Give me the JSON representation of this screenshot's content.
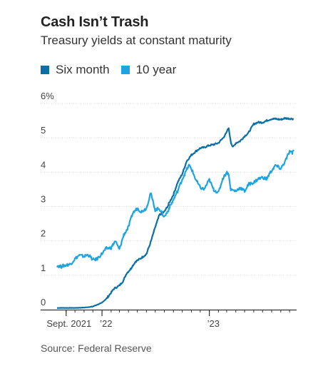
{
  "header": {
    "title": "Cash Isn’t Trash",
    "subtitle": "Treasury yields at constant maturity"
  },
  "source": "Source: Federal Reserve",
  "colors": {
    "six_month": "#0c6fa6",
    "ten_year": "#1ea4e0",
    "grid": "#d9d9d9",
    "axis": "#333333"
  },
  "chart_data": {
    "type": "line",
    "title": "Cash Isn’t Trash",
    "subtitle": "Treasury yields at constant maturity",
    "ylim": [
      0,
      6
    ],
    "y_ticks": [
      {
        "value": 0,
        "label": "0"
      },
      {
        "value": 1,
        "label": "1"
      },
      {
        "value": 2,
        "label": "2"
      },
      {
        "value": 3,
        "label": "3"
      },
      {
        "value": 4,
        "label": "4"
      },
      {
        "value": 5,
        "label": "5"
      },
      {
        "value": 6,
        "label": "6%"
      }
    ],
    "x_range": [
      "2021-08-01",
      "2023-10-20"
    ],
    "x_ticks": [
      {
        "date": "2021-09-01",
        "label": "Sept. 2021"
      },
      {
        "date": "2022-01-01",
        "label": "’22"
      },
      {
        "date": "2023-01-01",
        "label": "’23"
      }
    ],
    "grid": true,
    "legend": "top-left",
    "series": [
      {
        "name": "Six month",
        "color": "#0c6fa6",
        "points": [
          [
            "2021-08-01",
            0.05
          ],
          [
            "2021-09-01",
            0.05
          ],
          [
            "2021-10-01",
            0.05
          ],
          [
            "2021-11-01",
            0.06
          ],
          [
            "2021-12-01",
            0.09
          ],
          [
            "2022-01-01",
            0.2
          ],
          [
            "2022-01-20",
            0.35
          ],
          [
            "2022-02-10",
            0.6
          ],
          [
            "2022-03-01",
            0.7
          ],
          [
            "2022-03-15",
            0.85
          ],
          [
            "2022-03-25",
            1.05
          ],
          [
            "2022-04-10",
            1.2
          ],
          [
            "2022-04-25",
            1.4
          ],
          [
            "2022-05-15",
            1.5
          ],
          [
            "2022-06-01",
            1.62
          ],
          [
            "2022-06-15",
            1.95
          ],
          [
            "2022-07-01",
            2.4
          ],
          [
            "2022-07-15",
            2.75
          ],
          [
            "2022-08-01",
            2.85
          ],
          [
            "2022-08-15",
            3.05
          ],
          [
            "2022-09-01",
            3.35
          ],
          [
            "2022-09-15",
            3.7
          ],
          [
            "2022-10-01",
            3.95
          ],
          [
            "2022-10-15",
            4.3
          ],
          [
            "2022-11-01",
            4.5
          ],
          [
            "2022-11-15",
            4.6
          ],
          [
            "2022-12-01",
            4.7
          ],
          [
            "2022-12-15",
            4.72
          ],
          [
            "2023-01-01",
            4.78
          ],
          [
            "2023-01-15",
            4.8
          ],
          [
            "2023-02-01",
            4.85
          ],
          [
            "2023-02-15",
            4.98
          ],
          [
            "2023-03-01",
            5.15
          ],
          [
            "2023-03-08",
            5.3
          ],
          [
            "2023-03-15",
            4.9
          ],
          [
            "2023-03-22",
            4.72
          ],
          [
            "2023-04-01",
            4.85
          ],
          [
            "2023-04-15",
            4.9
          ],
          [
            "2023-05-01",
            5.05
          ],
          [
            "2023-05-15",
            5.15
          ],
          [
            "2023-06-01",
            5.4
          ],
          [
            "2023-06-15",
            5.45
          ],
          [
            "2023-07-01",
            5.45
          ],
          [
            "2023-07-15",
            5.5
          ],
          [
            "2023-08-01",
            5.55
          ],
          [
            "2023-08-15",
            5.55
          ],
          [
            "2023-09-01",
            5.53
          ],
          [
            "2023-09-15",
            5.57
          ],
          [
            "2023-10-01",
            5.56
          ],
          [
            "2023-10-15",
            5.55
          ]
        ]
      },
      {
        "name": "10 year",
        "color": "#1ea4e0",
        "points": [
          [
            "2021-08-01",
            1.28
          ],
          [
            "2021-08-15",
            1.25
          ],
          [
            "2021-09-01",
            1.3
          ],
          [
            "2021-09-15",
            1.32
          ],
          [
            "2021-10-01",
            1.48
          ],
          [
            "2021-10-15",
            1.58
          ],
          [
            "2021-11-01",
            1.55
          ],
          [
            "2021-11-15",
            1.6
          ],
          [
            "2021-12-01",
            1.45
          ],
          [
            "2021-12-15",
            1.47
          ],
          [
            "2022-01-01",
            1.63
          ],
          [
            "2022-01-15",
            1.78
          ],
          [
            "2022-02-01",
            1.8
          ],
          [
            "2022-02-15",
            2.0
          ],
          [
            "2022-03-01",
            1.75
          ],
          [
            "2022-03-15",
            2.15
          ],
          [
            "2022-04-01",
            2.4
          ],
          [
            "2022-04-15",
            2.8
          ],
          [
            "2022-05-01",
            2.95
          ],
          [
            "2022-05-15",
            2.85
          ],
          [
            "2022-06-01",
            2.95
          ],
          [
            "2022-06-15",
            3.4
          ],
          [
            "2022-07-01",
            2.9
          ],
          [
            "2022-07-15",
            2.95
          ],
          [
            "2022-08-01",
            2.7
          ],
          [
            "2022-08-15",
            2.9
          ],
          [
            "2022-09-01",
            3.2
          ],
          [
            "2022-09-15",
            3.45
          ],
          [
            "2022-10-01",
            3.8
          ],
          [
            "2022-10-15",
            4.05
          ],
          [
            "2022-10-24",
            4.2
          ],
          [
            "2022-11-01",
            4.1
          ],
          [
            "2022-11-15",
            3.8
          ],
          [
            "2022-12-01",
            3.55
          ],
          [
            "2022-12-15",
            3.5
          ],
          [
            "2023-01-01",
            3.78
          ],
          [
            "2023-01-15",
            3.5
          ],
          [
            "2023-02-01",
            3.4
          ],
          [
            "2023-02-15",
            3.8
          ],
          [
            "2023-03-01",
            4.0
          ],
          [
            "2023-03-08",
            3.95
          ],
          [
            "2023-03-15",
            3.5
          ],
          [
            "2023-04-01",
            3.45
          ],
          [
            "2023-04-15",
            3.55
          ],
          [
            "2023-05-01",
            3.45
          ],
          [
            "2023-05-15",
            3.65
          ],
          [
            "2023-06-01",
            3.7
          ],
          [
            "2023-06-15",
            3.8
          ],
          [
            "2023-07-01",
            3.85
          ],
          [
            "2023-07-15",
            3.8
          ],
          [
            "2023-08-01",
            4.05
          ],
          [
            "2023-08-15",
            4.2
          ],
          [
            "2023-09-01",
            4.1
          ],
          [
            "2023-09-15",
            4.3
          ],
          [
            "2023-10-01",
            4.6
          ],
          [
            "2023-10-10",
            4.55
          ],
          [
            "2023-10-15",
            4.65
          ]
        ]
      }
    ]
  }
}
